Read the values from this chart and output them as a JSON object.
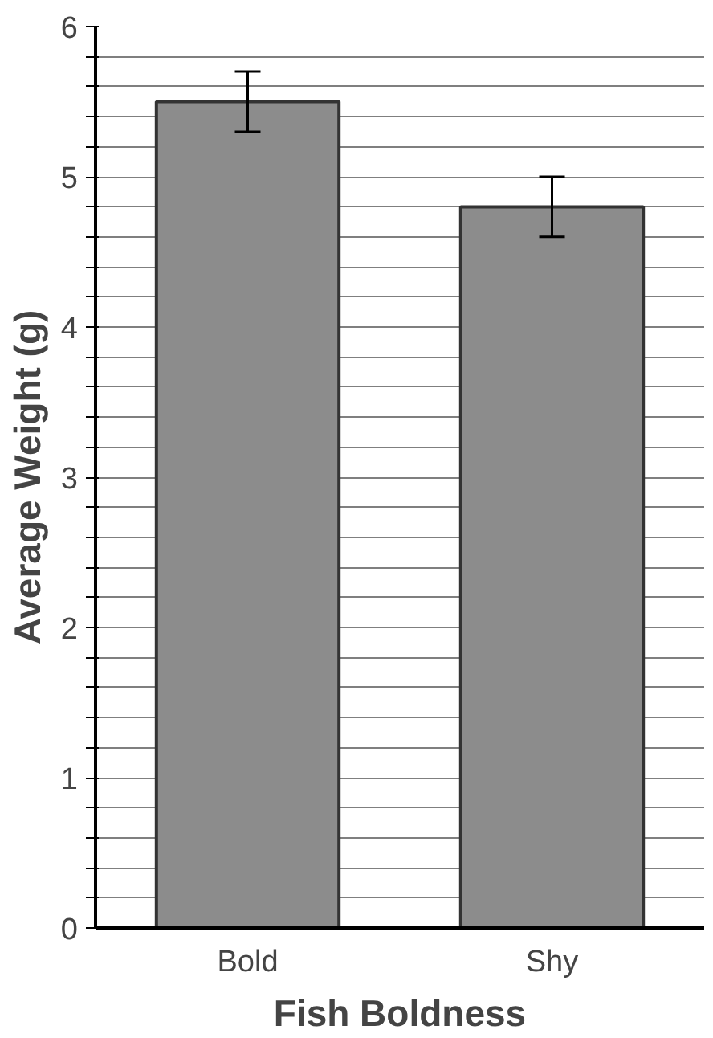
{
  "chart_data": {
    "type": "bar",
    "xlabel": "Fish Boldness",
    "ylabel": "Average Weight (g)",
    "categories": [
      "Bold",
      "Shy"
    ],
    "values": [
      5.5,
      4.8
    ],
    "errors": [
      0.2,
      0.2
    ],
    "color": "#8c8c8c",
    "ylim": [
      0,
      6
    ],
    "yticks": [
      0,
      {
        "value": 0.2,
        "label": null
      },
      {
        "value": 0.4,
        "label": null
      },
      {
        "value": 0.6,
        "label": null
      },
      {
        "value": 0.8,
        "label": null
      },
      1,
      {
        "value": 1.2,
        "label": null
      },
      {
        "value": 1.4,
        "label": null
      },
      {
        "value": 1.6,
        "label": null
      },
      {
        "value": 1.8,
        "label": null
      },
      2,
      {
        "value": 2.2,
        "label": null
      },
      {
        "value": 2.4,
        "label": null
      },
      {
        "value": 2.6,
        "label": null
      },
      {
        "value": 2.8,
        "label": null
      },
      3,
      {
        "value": 3.2,
        "label": null
      },
      {
        "value": 3.4,
        "label": null
      },
      {
        "value": 3.6,
        "label": null
      },
      {
        "value": 3.8,
        "label": null
      },
      4,
      {
        "value": 4.2,
        "label": null
      },
      {
        "value": 4.4,
        "label": null
      },
      {
        "value": 4.6,
        "label": null
      },
      {
        "value": 4.8,
        "label": null
      },
      5,
      {
        "value": 5.2,
        "label": null
      },
      {
        "value": 5.4,
        "label": null
      },
      {
        "value": 5.6,
        "label": null
      },
      {
        "value": 5.8,
        "label": null
      },
      6
    ],
    "grid": "y"
  }
}
